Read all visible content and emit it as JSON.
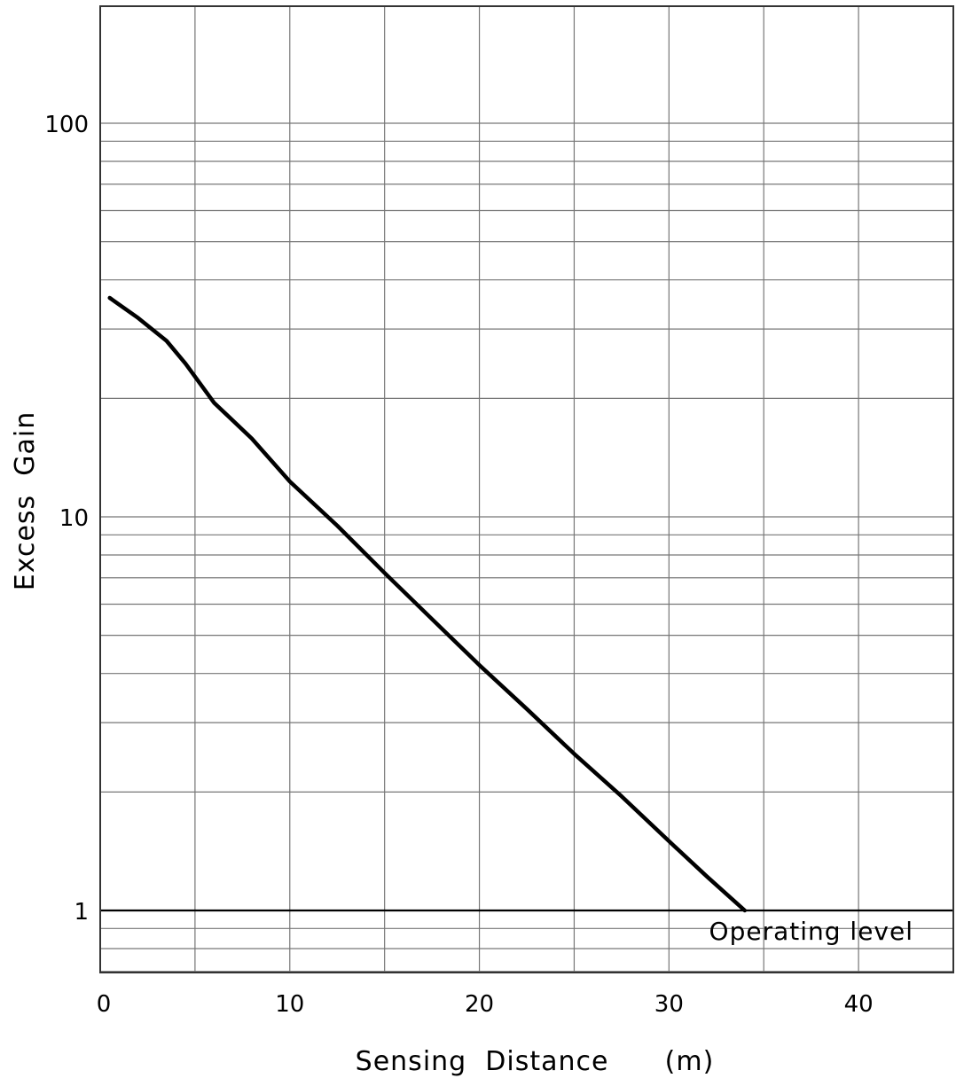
{
  "chart_data": {
    "type": "line",
    "title": "",
    "xlabel": "Sensing  Distance      (m)",
    "ylabel": "Excess  Gain",
    "xlim": [
      0,
      45
    ],
    "ylim": [
      0.7,
      200
    ],
    "yscale": "log",
    "grid": true,
    "x_ticks": [
      0,
      10,
      20,
      30,
      40
    ],
    "x_tick_labels": [
      "0",
      "10",
      "20",
      "30",
      "40"
    ],
    "y_ticks": [
      1,
      10,
      100
    ],
    "y_tick_labels": [
      "1",
      "10",
      "100"
    ],
    "series": [
      {
        "x": [
          0.5,
          2,
          3.5,
          4.5,
          6,
          8,
          10,
          12.5,
          15,
          17.5,
          20,
          22.5,
          25,
          27.5,
          30,
          32,
          34
        ],
        "y": [
          36,
          32,
          28,
          24.5,
          19.5,
          15.8,
          12.3,
          9.5,
          7.2,
          5.5,
          4.2,
          3.25,
          2.5,
          1.95,
          1.5,
          1.22,
          1.0
        ],
        "color": "#000000"
      }
    ],
    "reference_line": {
      "y": 1,
      "label": "Operating  level"
    }
  }
}
